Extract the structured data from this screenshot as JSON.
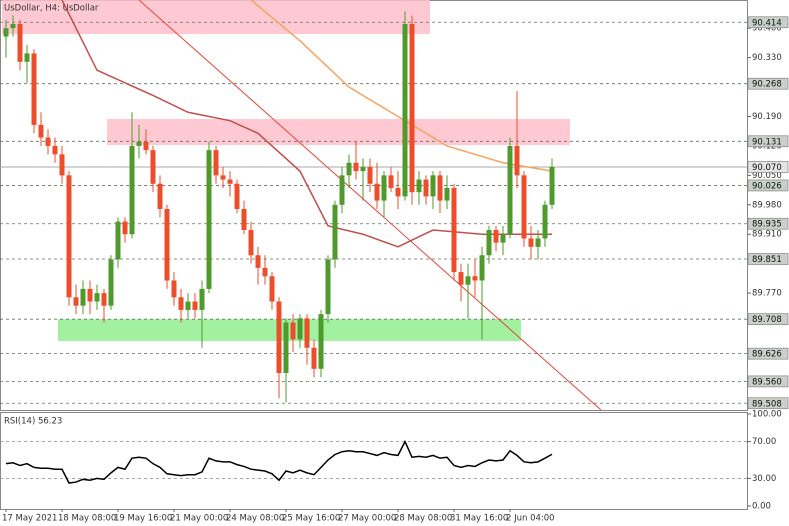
{
  "chart_data": [
    {
      "type": "candlestick",
      "title": "UsDollar, H4: UsDollar",
      "open": [
        90.38,
        90.4,
        90.41,
        90.32,
        90.34,
        90.17,
        90.14,
        90.12,
        90.1,
        90.05,
        89.76,
        89.74,
        89.78,
        89.75,
        89.77,
        89.74,
        89.85,
        89.94,
        89.91,
        90.12,
        90.13,
        90.11,
        90.03,
        89.97,
        89.8,
        89.76,
        89.73,
        89.75,
        89.73,
        89.78,
        90.11,
        90.05,
        90.04,
        90.03,
        89.97,
        89.92,
        89.86,
        89.83,
        89.81,
        89.75,
        89.58,
        89.7,
        89.66,
        89.71,
        89.64,
        89.59,
        89.72,
        89.85,
        89.98,
        90.05,
        90.08,
        90.06,
        90.07,
        90.03,
        89.99,
        90.05,
        90.02,
        90.0,
        90.41,
        90.01,
        90.04,
        90.0,
        90.05,
        89.99,
        90.02,
        89.82,
        89.79,
        89.81,
        89.8,
        89.86,
        89.92,
        89.89,
        89.91,
        90.12,
        90.05,
        89.9,
        89.88,
        89.9,
        89.98
      ],
      "high": [
        90.42,
        90.43,
        90.42,
        90.36,
        90.35,
        90.2,
        90.16,
        90.14,
        90.12,
        90.06,
        89.79,
        89.8,
        89.8,
        89.79,
        89.78,
        89.86,
        89.95,
        89.95,
        90.2,
        90.17,
        90.16,
        90.12,
        90.05,
        89.98,
        89.82,
        89.78,
        89.77,
        89.77,
        89.8,
        90.13,
        90.12,
        90.07,
        90.06,
        90.04,
        89.99,
        89.94,
        89.88,
        89.86,
        89.82,
        89.76,
        89.71,
        89.72,
        89.72,
        89.72,
        89.66,
        89.73,
        89.86,
        89.99,
        90.07,
        90.1,
        90.13,
        90.09,
        90.09,
        90.08,
        90.06,
        90.07,
        90.06,
        90.44,
        90.43,
        90.06,
        90.05,
        90.06,
        90.06,
        90.05,
        90.03,
        89.84,
        89.84,
        89.85,
        89.88,
        89.93,
        89.93,
        89.93,
        90.14,
        90.25,
        90.06,
        89.93,
        89.92,
        89.99,
        90.09
      ],
      "low": [
        90.33,
        90.38,
        90.3,
        90.27,
        90.15,
        90.12,
        90.1,
        90.08,
        90.03,
        89.74,
        89.72,
        89.72,
        89.72,
        89.73,
        89.7,
        89.73,
        89.83,
        89.89,
        89.9,
        90.09,
        90.1,
        90.01,
        89.95,
        89.78,
        89.74,
        89.7,
        89.71,
        89.71,
        89.64,
        89.77,
        90.03,
        90.02,
        90.0,
        89.96,
        89.91,
        89.84,
        89.79,
        89.79,
        89.73,
        89.52,
        89.51,
        89.63,
        89.64,
        89.6,
        89.57,
        89.57,
        89.7,
        89.83,
        89.96,
        90.02,
        90.04,
        89.99,
        90.01,
        89.97,
        89.95,
        90.01,
        89.97,
        89.99,
        89.98,
        89.98,
        89.98,
        89.97,
        89.96,
        89.97,
        89.8,
        89.75,
        89.71,
        89.76,
        89.66,
        89.84,
        89.87,
        89.86,
        89.9,
        90.02,
        89.88,
        89.85,
        89.85,
        89.88,
        89.97
      ],
      "close": [
        90.4,
        90.41,
        90.32,
        90.34,
        90.17,
        90.14,
        90.12,
        90.1,
        90.05,
        89.76,
        89.74,
        89.78,
        89.75,
        89.77,
        89.74,
        89.85,
        89.94,
        89.91,
        90.12,
        90.13,
        90.11,
        90.03,
        89.97,
        89.8,
        89.76,
        89.73,
        89.75,
        89.73,
        89.78,
        90.11,
        90.05,
        90.04,
        90.03,
        89.97,
        89.92,
        89.86,
        89.83,
        89.81,
        89.75,
        89.58,
        89.7,
        89.66,
        89.71,
        89.64,
        89.59,
        89.72,
        89.85,
        89.98,
        90.05,
        90.08,
        90.06,
        90.07,
        90.03,
        89.99,
        90.05,
        90.02,
        90.0,
        90.41,
        90.01,
        90.04,
        90.0,
        90.05,
        89.99,
        90.02,
        89.82,
        89.79,
        89.81,
        89.8,
        89.86,
        89.92,
        89.89,
        89.91,
        90.12,
        90.05,
        89.9,
        89.88,
        89.9,
        89.98,
        90.07
      ],
      "up_color": "#4f9a2c",
      "down_color": "#ec4d2b",
      "ylim": [
        89.492,
        90.467
      ],
      "yticks": [
        {
          "value": 90.4,
          "label": "90.400"
        },
        {
          "value": 90.33,
          "label": "90.330"
        },
        {
          "value": 90.19,
          "label": "90.190"
        },
        {
          "value": 90.12,
          "label": "90.120"
        },
        {
          "value": 90.05,
          "label": "90.050"
        },
        {
          "value": 89.98,
          "label": "89.980"
        },
        {
          "value": 89.91,
          "label": "89.910"
        },
        {
          "value": 89.77,
          "label": "89.770"
        }
      ],
      "levels": [
        90.414,
        90.268,
        90.131,
        90.026,
        89.935,
        89.851,
        89.708,
        89.626,
        {
          "value": 89.56,
          "label": "89.560"
        },
        89.508
      ],
      "current_price": {
        "value": 90.07,
        "label": "90.070"
      },
      "zones": [
        {
          "x": [
            0,
            60
          ],
          "from": 90.386,
          "to": 90.467,
          "color": "#ffc0cb"
        },
        {
          "x": [
            15,
            80
          ],
          "from": 90.122,
          "to": 90.184,
          "color": "#ffc0cb"
        },
        {
          "x": [
            8,
            73
          ],
          "from": 89.656,
          "to": 89.708,
          "color": "#90ee90"
        }
      ],
      "moving_averages": [
        {
          "color": "#c0504d",
          "x": [
            8,
            13,
            21,
            26,
            32,
            36,
            42,
            46,
            51,
            56,
            61,
            68,
            73,
            78
          ],
          "values": [
            90.467,
            90.3,
            90.24,
            90.2,
            90.18,
            90.15,
            90.06,
            89.93,
            89.91,
            89.88,
            89.92,
            89.91,
            89.91,
            89.91
          ]
        },
        {
          "color": "#f4a460",
          "x": [
            35,
            42,
            49,
            56,
            63,
            71,
            78
          ],
          "values": [
            90.467,
            90.37,
            90.26,
            90.19,
            90.12,
            90.08,
            90.06
          ]
        }
      ],
      "trendline": {
        "color": "#e8463a",
        "x": [
          19,
          85
        ],
        "values": [
          90.467,
          89.492
        ]
      }
    },
    {
      "type": "line",
      "title": "RSI(14) 56.23",
      "color": "#000000",
      "values": [
        46,
        47,
        44,
        46,
        42,
        41,
        41,
        40,
        40,
        25,
        26,
        29,
        28,
        30,
        29,
        36,
        42,
        40,
        52,
        53,
        52,
        46,
        42,
        35,
        34,
        33,
        34,
        34,
        37,
        52,
        49,
        48,
        48,
        45,
        43,
        40,
        39,
        38,
        35,
        28,
        38,
        36,
        39,
        36,
        34,
        42,
        50,
        56,
        59,
        60,
        59,
        59,
        57,
        55,
        58,
        56,
        55,
        70,
        53,
        54,
        53,
        55,
        52,
        53,
        44,
        42,
        44,
        43,
        47,
        50,
        49,
        50,
        60,
        55,
        48,
        47,
        48,
        52,
        56.23
      ],
      "ylim": [
        0,
        100
      ],
      "yticks": [
        {
          "value": 100,
          "label": "100.00"
        },
        {
          "value": 70,
          "label": "70.00"
        },
        {
          "value": 30,
          "label": "30.00"
        },
        {
          "value": 0,
          "label": "0.00"
        }
      ],
      "xticks": [
        {
          "value": 0,
          "label": "17 May 2021"
        },
        {
          "value": 8,
          "label": "18 May 08:00"
        },
        {
          "value": 16,
          "label": "19 May 16:00"
        },
        {
          "value": 24,
          "label": "21 May 00:00"
        },
        {
          "value": 32,
          "label": "24 May 08:00"
        },
        {
          "value": 40,
          "label": "25 May 16:00"
        },
        {
          "value": 48,
          "label": "27 May 00:00"
        },
        {
          "value": 56,
          "label": "28 May 08:00"
        },
        {
          "value": 64,
          "label": "31 May 16:00"
        },
        {
          "value": 72,
          "label": "2 Jun 04:00"
        }
      ]
    }
  ]
}
